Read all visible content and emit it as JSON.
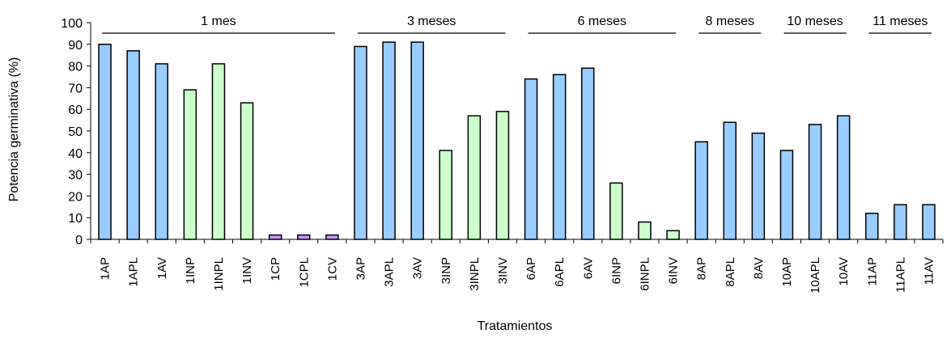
{
  "chart_data": {
    "type": "bar",
    "xlabel": "Tratamientos",
    "ylabel": "Potencia germinativa (%)",
    "ylim": [
      0,
      100
    ],
    "yticks": [
      "0",
      "10",
      "20",
      "30",
      "40",
      "50",
      "60",
      "70",
      "80",
      "90",
      "100"
    ],
    "grid": false,
    "legend": "none",
    "categories": [
      "1AP",
      "1APL",
      "1AV",
      "1INP",
      "1INPL",
      "1INV",
      "1CP",
      "1CPL",
      "1CV",
      "3AP",
      "3APL",
      "3AV",
      "3INP",
      "3INPL",
      "3INV",
      "6AP",
      "6APL",
      "6AV",
      "6INP",
      "6INPL",
      "6INV",
      "8AP",
      "8APL",
      "8AV",
      "10AP",
      "10APL",
      "10AV",
      "11AP",
      "11APL",
      "11AV"
    ],
    "values": [
      90,
      87,
      81,
      69,
      81,
      63,
      2,
      2,
      2,
      89,
      91,
      91,
      41,
      57,
      59,
      74,
      76,
      79,
      26,
      8,
      4,
      45,
      54,
      49,
      41,
      53,
      57,
      12,
      16,
      16
    ],
    "bar_colors": [
      "#99ccff",
      "#99ccff",
      "#99ccff",
      "#ccffcc",
      "#ccffcc",
      "#ccffcc",
      "#cc99ff",
      "#cc99ff",
      "#cc99ff",
      "#99ccff",
      "#99ccff",
      "#99ccff",
      "#ccffcc",
      "#ccffcc",
      "#ccffcc",
      "#99ccff",
      "#99ccff",
      "#99ccff",
      "#ccffcc",
      "#ccffcc",
      "#ccffcc",
      "#99ccff",
      "#99ccff",
      "#99ccff",
      "#99ccff",
      "#99ccff",
      "#99ccff",
      "#99ccff",
      "#99ccff",
      "#99ccff"
    ],
    "groups": [
      {
        "label": "1 mes",
        "from": 0,
        "to": 8
      },
      {
        "label": "3 meses",
        "from": 9,
        "to": 14
      },
      {
        "label": "6 meses",
        "from": 15,
        "to": 20
      },
      {
        "label": "8 meses",
        "from": 21,
        "to": 23
      },
      {
        "label": "10 meses",
        "from": 24,
        "to": 26
      },
      {
        "label": "11 meses",
        "from": 27,
        "to": 29
      }
    ]
  }
}
